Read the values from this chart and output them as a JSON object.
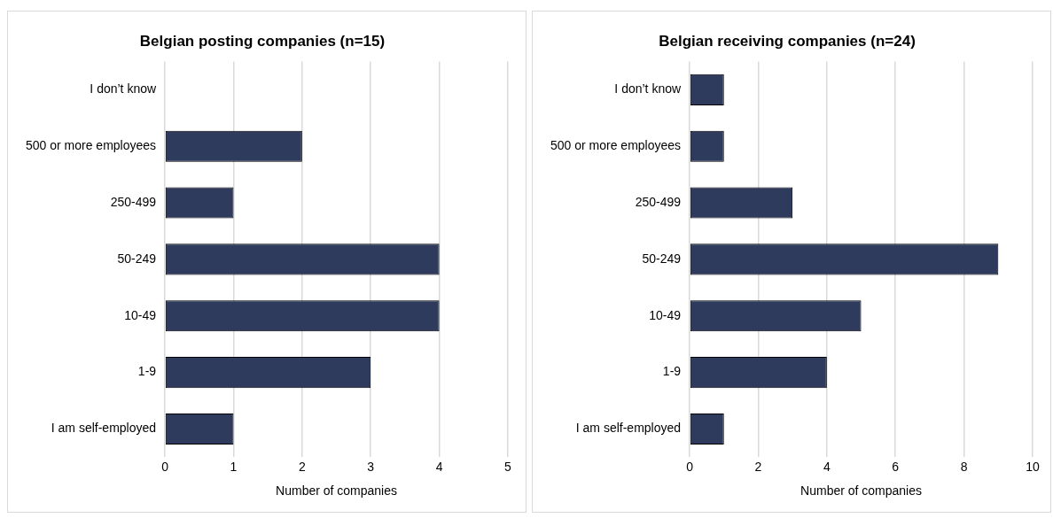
{
  "chart_data": [
    {
      "type": "bar",
      "orientation": "horizontal",
      "title": "Belgian posting companies (n=15)",
      "xlabel": "Number of companies",
      "categories": [
        "I don’t know",
        "500 or more employees",
        "250-499",
        "50-249",
        "10-49",
        "1-9",
        "I am self-employed"
      ],
      "values": [
        0,
        2,
        1,
        4,
        4,
        3,
        1
      ],
      "color": "#2e3b5c",
      "xlim": [
        0,
        5
      ],
      "xticks": [
        0,
        1,
        2,
        3,
        4,
        5
      ],
      "grid": "x",
      "legend": false
    },
    {
      "type": "bar",
      "orientation": "horizontal",
      "title": "Belgian receiving companies (n=24)",
      "xlabel": "Number of companies",
      "categories": [
        "I don’t know",
        "500 or more employees",
        "250-499",
        "50-249",
        "10-49",
        "1-9",
        "I am self-employed"
      ],
      "values": [
        1,
        1,
        3,
        9,
        5,
        4,
        1
      ],
      "color": "#2e3b5c",
      "xlim": [
        0,
        10
      ],
      "xticks": [
        0,
        2,
        4,
        6,
        8,
        10
      ],
      "grid": "x",
      "legend": false
    }
  ]
}
